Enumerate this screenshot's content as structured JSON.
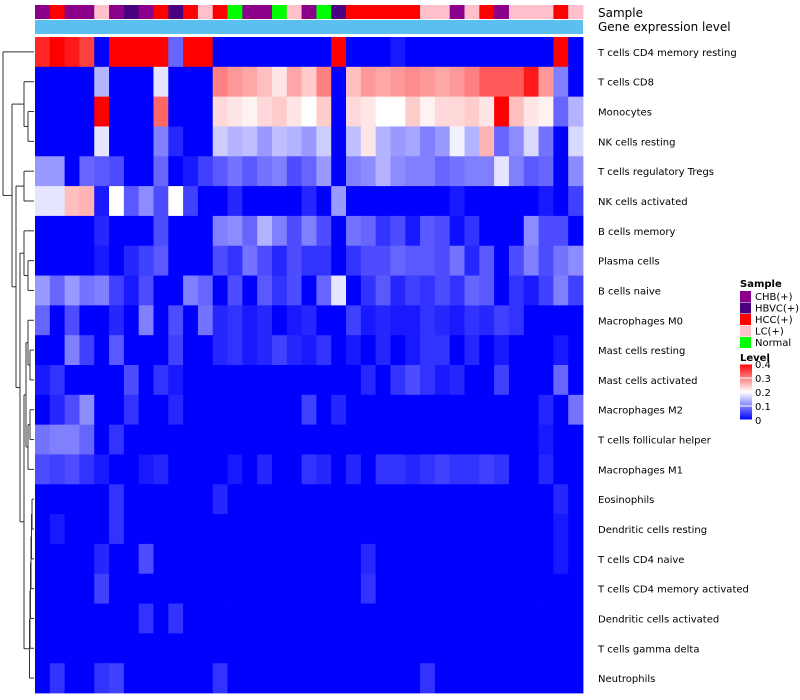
{
  "chart_data": {
    "type": "heatmap",
    "title": "",
    "annotation_labels": {
      "sample": "Sample",
      "gene_expression": "Gene expression level"
    },
    "sample_legend": {
      "title": "Sample",
      "entries": [
        {
          "label": "CHB(+)",
          "color": "#8B008B"
        },
        {
          "label": "HBVC(+)",
          "color": "#4B0082"
        },
        {
          "label": "HCC(+)",
          "color": "#FF0000"
        },
        {
          "label": "LC(+)",
          "color": "#FFC0CB"
        },
        {
          "label": "Normal",
          "color": "#00FF00"
        }
      ]
    },
    "level_legend": {
      "title": "Level",
      "ticks": [
        "0.4",
        "0.3",
        "0.2",
        "0.1",
        "0"
      ],
      "range": [
        0,
        0.4
      ],
      "colors": {
        "low": "#0000FF",
        "mid": "#FFFFFF",
        "high": "#FF0000"
      }
    },
    "gene_expression_color": "#5BC0F0",
    "sample_colors": [
      "#8B008B",
      "#FF0000",
      "#8B008B",
      "#8B008B",
      "#FFC0CB",
      "#8B008B",
      "#4B0082",
      "#8B008B",
      "#FF0000",
      "#4B0082",
      "#FF0000",
      "#FFC0CB",
      "#FF0000",
      "#00FF00",
      "#8B008B",
      "#8B008B",
      "#00FF00",
      "#FFC0CB",
      "#8B008B",
      "#00FF00",
      "#4B0082",
      "#FF0000",
      "#FF0000",
      "#FF0000",
      "#FF0000",
      "#FF0000",
      "#FFC0CB",
      "#FFC0CB",
      "#8B008B",
      "#FFC0CB",
      "#FF0000",
      "#8B008B",
      "#FFC0CB",
      "#FFC0CB",
      "#FFC0CB",
      "#FF0000",
      "#FFC0CB"
    ],
    "rows": [
      "T cells CD4 memory resting",
      "T cells CD8",
      "Monocytes",
      "NK cells resting",
      "T cells regulatory  Tregs",
      "NK cells activated",
      "B cells memory",
      "Plasma cells",
      "B cells naive",
      "Macrophages M0",
      "Mast cells resting",
      "Mast cells activated",
      "Macrophages M2",
      "T cells follicular helper",
      "Macrophages M1",
      "Eosinophils",
      "Dendritic cells resting",
      "T cells CD4 naive",
      "T cells CD4 memory activated",
      "Dendritic cells activated",
      "T cells gamma delta",
      "Neutrophils"
    ],
    "values": [
      [
        0.37,
        0.4,
        0.38,
        0.35,
        0.0,
        0.4,
        0.4,
        0.4,
        0.4,
        0.08,
        0.4,
        0.4,
        0.0,
        0.0,
        0.0,
        0.0,
        0.0,
        0.0,
        0.0,
        0.0,
        0.4,
        0.0,
        0.0,
        0.0,
        0.02,
        0.0,
        0.0,
        0.0,
        0.0,
        0.0,
        0.0,
        0.0,
        0.0,
        0.0,
        0.0,
        0.4,
        0.0
      ],
      [
        0.0,
        0.0,
        0.0,
        0.0,
        0.14,
        0.0,
        0.0,
        0.0,
        0.18,
        0.0,
        0.0,
        0.0,
        0.3,
        0.28,
        0.27,
        0.25,
        0.22,
        0.27,
        0.24,
        0.3,
        0.0,
        0.25,
        0.28,
        0.27,
        0.28,
        0.29,
        0.28,
        0.27,
        0.28,
        0.3,
        0.33,
        0.33,
        0.33,
        0.38,
        0.28,
        0.1,
        0.0
      ],
      [
        0.0,
        0.0,
        0.0,
        0.0,
        0.4,
        0.0,
        0.0,
        0.0,
        0.32,
        0.0,
        0.0,
        0.0,
        0.23,
        0.22,
        0.21,
        0.23,
        0.24,
        0.22,
        0.2,
        0.24,
        0.0,
        0.23,
        0.22,
        0.2,
        0.2,
        0.24,
        0.21,
        0.23,
        0.23,
        0.24,
        0.22,
        0.4,
        0.25,
        0.22,
        0.21,
        0.08,
        0.14
      ],
      [
        0.0,
        0.0,
        0.0,
        0.0,
        0.18,
        0.0,
        0.0,
        0.0,
        0.1,
        0.03,
        0.0,
        0.0,
        0.16,
        0.14,
        0.15,
        0.12,
        0.15,
        0.14,
        0.12,
        0.16,
        0.0,
        0.15,
        0.22,
        0.14,
        0.12,
        0.13,
        0.1,
        0.12,
        0.19,
        0.14,
        0.26,
        0.08,
        0.11,
        0.17,
        0.09,
        0.0,
        0.17
      ],
      [
        0.12,
        0.12,
        0.0,
        0.08,
        0.07,
        0.06,
        0.0,
        0.0,
        0.08,
        0.0,
        0.02,
        0.05,
        0.07,
        0.09,
        0.07,
        0.09,
        0.1,
        0.06,
        0.08,
        0.12,
        0.0,
        0.1,
        0.11,
        0.14,
        0.11,
        0.1,
        0.1,
        0.08,
        0.09,
        0.1,
        0.1,
        0.18,
        0.1,
        0.07,
        0.08,
        0.0,
        0.11
      ],
      [
        0.18,
        0.18,
        0.25,
        0.26,
        0.02,
        0.2,
        0.07,
        0.11,
        0.06,
        0.2,
        0.05,
        0.0,
        0.0,
        0.03,
        0.0,
        0.0,
        0.0,
        0.0,
        0.03,
        0.0,
        0.12,
        0.0,
        0.0,
        0.0,
        0.0,
        0.0,
        0.0,
        0.0,
        0.02,
        0.0,
        0.0,
        0.0,
        0.0,
        0.0,
        0.02,
        0.0,
        0.05
      ],
      [
        0.0,
        0.0,
        0.0,
        0.0,
        0.03,
        0.0,
        0.0,
        0.0,
        0.06,
        0.0,
        0.0,
        0.0,
        0.1,
        0.11,
        0.08,
        0.14,
        0.1,
        0.06,
        0.1,
        0.06,
        0.0,
        0.09,
        0.08,
        0.04,
        0.06,
        0.02,
        0.07,
        0.06,
        0.01,
        0.04,
        0.0,
        0.0,
        0.0,
        0.11,
        0.06,
        0.06,
        0.0
      ],
      [
        0.0,
        0.0,
        0.0,
        0.0,
        0.02,
        0.0,
        0.03,
        0.05,
        0.07,
        0.0,
        0.0,
        0.0,
        0.06,
        0.04,
        0.09,
        0.06,
        0.03,
        0.06,
        0.04,
        0.04,
        0.0,
        0.04,
        0.06,
        0.06,
        0.08,
        0.07,
        0.07,
        0.06,
        0.09,
        0.03,
        0.07,
        0.0,
        0.06,
        0.1,
        0.06,
        0.09,
        0.11
      ],
      [
        0.12,
        0.08,
        0.12,
        0.09,
        0.1,
        0.05,
        0.02,
        0.06,
        0.0,
        0.0,
        0.1,
        0.08,
        0.0,
        0.06,
        0.0,
        0.07,
        0.04,
        0.06,
        0.0,
        0.08,
        0.18,
        0.0,
        0.04,
        0.07,
        0.03,
        0.05,
        0.04,
        0.06,
        0.04,
        0.08,
        0.07,
        0.0,
        0.04,
        0.02,
        0.05,
        0.1,
        0.05
      ],
      [
        0.08,
        0.0,
        0.06,
        0.0,
        0.0,
        0.03,
        0.0,
        0.1,
        0.0,
        0.06,
        0.0,
        0.09,
        0.03,
        0.04,
        0.02,
        0.03,
        0.0,
        0.02,
        0.03,
        0.0,
        0.0,
        0.05,
        0.02,
        0.03,
        0.02,
        0.02,
        0.04,
        0.03,
        0.02,
        0.04,
        0.03,
        0.05,
        0.04,
        0.0,
        0.0,
        0.0,
        0.0
      ],
      [
        0.0,
        0.0,
        0.1,
        0.05,
        0.0,
        0.07,
        0.0,
        0.0,
        0.0,
        0.05,
        0.0,
        0.0,
        0.03,
        0.04,
        0.02,
        0.03,
        0.05,
        0.03,
        0.02,
        0.04,
        0.0,
        0.02,
        0.0,
        0.03,
        0.0,
        0.02,
        0.04,
        0.04,
        0.0,
        0.03,
        0.0,
        0.02,
        0.0,
        0.0,
        0.0,
        0.02,
        0.0
      ],
      [
        0.02,
        0.04,
        0.0,
        0.0,
        0.0,
        0.0,
        0.06,
        0.0,
        0.04,
        0.02,
        0.0,
        0.0,
        0.0,
        0.0,
        0.0,
        0.0,
        0.0,
        0.0,
        0.0,
        0.0,
        0.0,
        0.0,
        0.03,
        0.0,
        0.04,
        0.06,
        0.04,
        0.02,
        0.03,
        0.0,
        0.0,
        0.05,
        0.0,
        0.0,
        0.0,
        0.08,
        0.0
      ],
      [
        0.0,
        0.03,
        0.06,
        0.11,
        0.0,
        0.0,
        0.04,
        0.0,
        0.0,
        0.03,
        0.0,
        0.0,
        0.0,
        0.0,
        0.0,
        0.0,
        0.0,
        0.0,
        0.05,
        0.0,
        0.03,
        0.0,
        0.0,
        0.0,
        0.0,
        0.0,
        0.0,
        0.0,
        0.0,
        0.0,
        0.0,
        0.0,
        0.0,
        0.0,
        0.03,
        0.0,
        0.09
      ],
      [
        0.09,
        0.1,
        0.1,
        0.08,
        0.0,
        0.04,
        0.0,
        0.0,
        0.0,
        0.0,
        0.0,
        0.0,
        0.0,
        0.0,
        0.0,
        0.0,
        0.0,
        0.0,
        0.0,
        0.0,
        0.0,
        0.0,
        0.0,
        0.0,
        0.0,
        0.0,
        0.0,
        0.0,
        0.0,
        0.0,
        0.0,
        0.0,
        0.0,
        0.0,
        0.02,
        0.0,
        0.0
      ],
      [
        0.06,
        0.05,
        0.06,
        0.04,
        0.02,
        0.0,
        0.0,
        0.02,
        0.03,
        0.0,
        0.0,
        0.0,
        0.0,
        0.02,
        0.0,
        0.03,
        0.0,
        0.0,
        0.04,
        0.03,
        0.0,
        0.03,
        0.0,
        0.04,
        0.04,
        0.03,
        0.04,
        0.05,
        0.04,
        0.04,
        0.05,
        0.04,
        0.0,
        0.0,
        0.03,
        0.0,
        0.0
      ],
      [
        0.0,
        0.0,
        0.0,
        0.0,
        0.0,
        0.04,
        0.0,
        0.0,
        0.0,
        0.0,
        0.0,
        0.0,
        0.03,
        0.0,
        0.0,
        0.0,
        0.0,
        0.0,
        0.0,
        0.0,
        0.0,
        0.0,
        0.0,
        0.0,
        0.0,
        0.0,
        0.0,
        0.0,
        0.0,
        0.0,
        0.0,
        0.0,
        0.0,
        0.0,
        0.0,
        0.03,
        0.0
      ],
      [
        0.0,
        0.02,
        0.0,
        0.0,
        0.0,
        0.04,
        0.0,
        0.0,
        0.0,
        0.0,
        0.0,
        0.0,
        0.0,
        0.0,
        0.0,
        0.0,
        0.0,
        0.0,
        0.0,
        0.0,
        0.0,
        0.0,
        0.0,
        0.0,
        0.0,
        0.0,
        0.0,
        0.0,
        0.0,
        0.0,
        0.0,
        0.0,
        0.0,
        0.0,
        0.0,
        0.02,
        0.0
      ],
      [
        0.0,
        0.0,
        0.0,
        0.0,
        0.03,
        0.0,
        0.0,
        0.06,
        0.0,
        0.0,
        0.0,
        0.0,
        0.0,
        0.0,
        0.0,
        0.0,
        0.0,
        0.0,
        0.0,
        0.0,
        0.0,
        0.0,
        0.03,
        0.0,
        0.0,
        0.0,
        0.0,
        0.0,
        0.0,
        0.0,
        0.0,
        0.0,
        0.0,
        0.0,
        0.0,
        0.02,
        0.0
      ],
      [
        0.0,
        0.0,
        0.0,
        0.0,
        0.05,
        0.0,
        0.0,
        0.0,
        0.0,
        0.0,
        0.0,
        0.0,
        0.0,
        0.0,
        0.0,
        0.0,
        0.0,
        0.0,
        0.0,
        0.0,
        0.0,
        0.0,
        0.04,
        0.0,
        0.0,
        0.0,
        0.0,
        0.0,
        0.0,
        0.0,
        0.0,
        0.0,
        0.0,
        0.0,
        0.0,
        0.0,
        0.0
      ],
      [
        0.0,
        0.0,
        0.0,
        0.0,
        0.0,
        0.0,
        0.0,
        0.04,
        0.0,
        0.04,
        0.0,
        0.0,
        0.0,
        0.0,
        0.0,
        0.0,
        0.0,
        0.0,
        0.0,
        0.0,
        0.0,
        0.0,
        0.0,
        0.0,
        0.0,
        0.0,
        0.0,
        0.0,
        0.0,
        0.0,
        0.0,
        0.0,
        0.0,
        0.0,
        0.0,
        0.0,
        0.0
      ],
      [
        0.0,
        0.0,
        0.0,
        0.0,
        0.0,
        0.0,
        0.0,
        0.0,
        0.0,
        0.0,
        0.0,
        0.0,
        0.0,
        0.0,
        0.0,
        0.0,
        0.0,
        0.0,
        0.0,
        0.0,
        0.0,
        0.0,
        0.0,
        0.0,
        0.0,
        0.0,
        0.0,
        0.0,
        0.0,
        0.0,
        0.0,
        0.0,
        0.0,
        0.0,
        0.0,
        0.0,
        0.0
      ],
      [
        0.0,
        0.04,
        0.0,
        0.0,
        0.04,
        0.05,
        0.0,
        0.0,
        0.0,
        0.0,
        0.0,
        0.0,
        0.04,
        0.0,
        0.0,
        0.0,
        0.0,
        0.0,
        0.0,
        0.0,
        0.0,
        0.0,
        0.0,
        0.0,
        0.0,
        0.0,
        0.04,
        0.0,
        0.0,
        0.0,
        0.0,
        0.0,
        0.0,
        0.0,
        0.0,
        0.0,
        0.0
      ]
    ]
  }
}
